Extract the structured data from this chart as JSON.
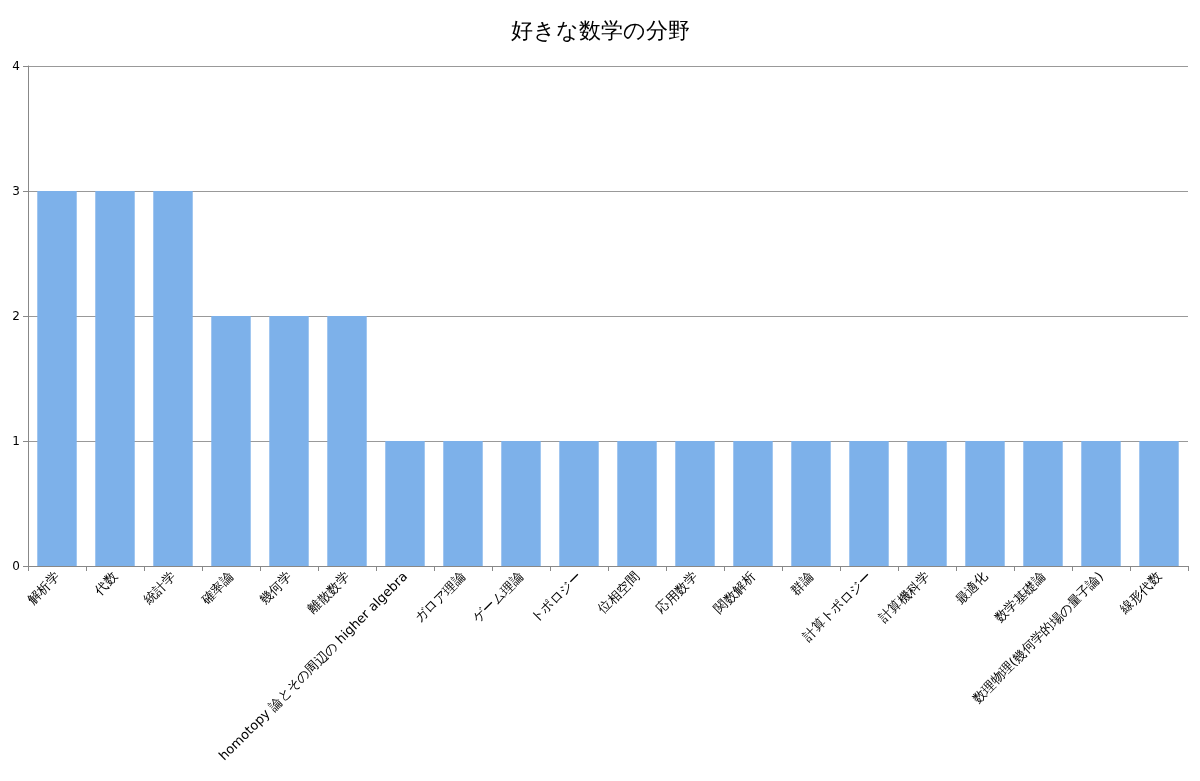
{
  "chart_data": {
    "type": "bar",
    "title": "好きな数学の分野",
    "categories": [
      "解析学",
      "代数",
      "統計学",
      "確率論",
      "幾何学",
      "離散数学",
      "homotopy 論とその周辺の higher algebra",
      "ガロア理論",
      "ゲーム理論",
      "トポロジー",
      "位相空間",
      "応用数学",
      "関数解析",
      "群論",
      "計算トポロジー",
      "計算機科学",
      "最適化",
      "数学基礎論",
      "数理物理(幾何学的場の量子論)",
      "線形代数"
    ],
    "values": [
      3,
      3,
      3,
      2,
      2,
      2,
      1,
      1,
      1,
      1,
      1,
      1,
      1,
      1,
      1,
      1,
      1,
      1,
      1,
      1
    ],
    "color": "#7db1ea",
    "ylim": [
      0,
      4
    ],
    "yticks": [
      0,
      1,
      2,
      3,
      4
    ],
    "grid": "y"
  }
}
